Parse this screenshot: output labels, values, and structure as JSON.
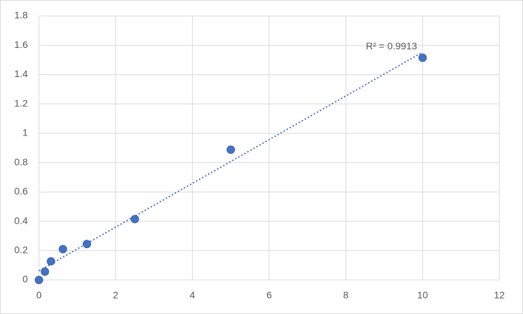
{
  "chart_data": {
    "type": "scatter",
    "x": [
      0,
      0.156,
      0.312,
      0.625,
      1.25,
      2.5,
      5,
      10
    ],
    "values": [
      0,
      0.057,
      0.127,
      0.21,
      0.245,
      0.415,
      0.888,
      1.515
    ],
    "color": "#4472c4",
    "trendline": "linear",
    "annotation": "R² = 0.9913",
    "xlim": [
      0,
      12
    ],
    "xticks": [
      0,
      2,
      4,
      6,
      8,
      10,
      12
    ],
    "ylim": [
      0,
      1.8
    ],
    "yticks": [
      0,
      0.2,
      0.4,
      0.6,
      0.8,
      1,
      1.2,
      1.4,
      1.6,
      1.8
    ],
    "grid": true
  }
}
